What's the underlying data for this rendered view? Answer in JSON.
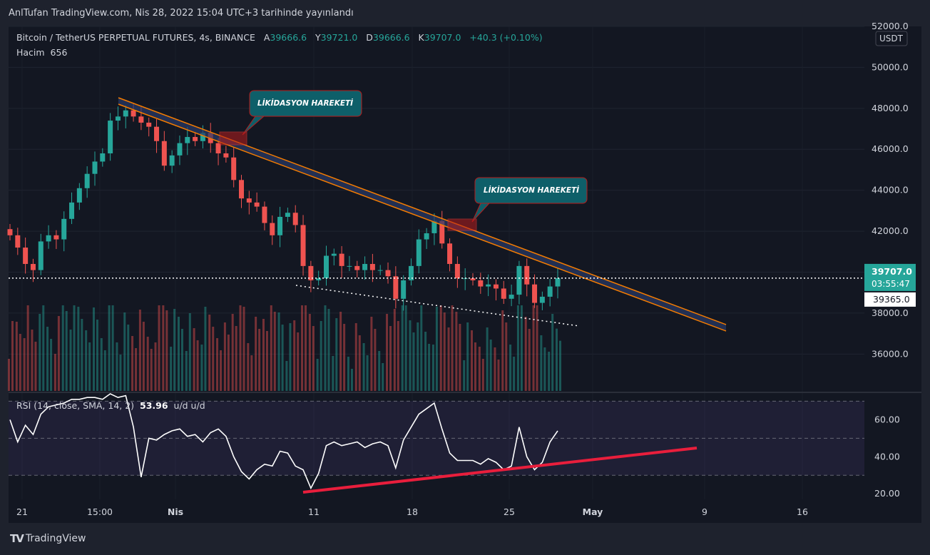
{
  "header": {
    "published": "AnlTufan TradingView.com, Nis 28, 2022 15:04 UTC+3 tarihinde yayınlandı"
  },
  "legend": {
    "symbol": "Bitcoin / TetherUS PERPETUAL FUTURES, 4s, BINANCE",
    "open_label": "A",
    "open": "39666.6",
    "high_label": "Y",
    "high": "39721.0",
    "low_label": "D",
    "low": "39666.6",
    "close_label": "K",
    "close": "39707.0",
    "change": "+40.3 (+0.10%)",
    "volume_label": "Hacim",
    "volume": "656"
  },
  "rsi_legend": {
    "text": "RSI (14, close, SMA, 14, 2)",
    "value": "53.96",
    "extra": "u/d u/d"
  },
  "footer": {
    "brand": "TradingView"
  },
  "colors": {
    "up": "#26a69a",
    "down": "#ef5350",
    "channel": "#f57c00",
    "support": "#e91e3c",
    "callout": "#0e5f69"
  },
  "chart_data": [
    {
      "type": "candlestick",
      "title": "Bitcoin / TetherUS PERPETUAL FUTURES, 4s, BINANCE",
      "ylabel": "USDT",
      "ylim": [
        34200,
        52000
      ],
      "y_ticks": [
        "36000.0",
        "38000.0",
        "40000.0",
        "42000.0",
        "44000.0",
        "46000.0",
        "48000.0",
        "50000.0",
        "52000.0"
      ],
      "x_ticks": [
        "21",
        "15:00",
        "Nis",
        "11",
        "18",
        "25",
        "May",
        "9",
        "16"
      ],
      "price_label": "39707.0",
      "countdown_label": "03:55:47",
      "level_label": "39365.0",
      "current_price": 39707,
      "level_price": 39365,
      "series": [
        {
          "name": "close",
          "values": [
            41800,
            41200,
            40400,
            40100,
            41500,
            41800,
            41600,
            42600,
            43400,
            44100,
            44800,
            45400,
            45800,
            47400,
            47600,
            47900,
            47600,
            47300,
            47100,
            46400,
            45200,
            45700,
            46300,
            46600,
            46400,
            46800,
            46300,
            45800,
            45600,
            44500,
            43600,
            43400,
            43200,
            42400,
            41800,
            42700,
            42900,
            42300,
            40300,
            39600,
            39700,
            40800,
            40900,
            40300,
            40300,
            40100,
            40400,
            40100,
            40100,
            39800,
            38700,
            39600,
            40300,
            41600,
            41900,
            42500,
            41400,
            40400,
            39700,
            39700,
            39600,
            39300,
            39400,
            39200,
            38700,
            38900,
            40300,
            39400,
            38500,
            38800,
            39300,
            39707
          ]
        }
      ],
      "annotations": [
        {
          "text": "LİKİDASYON HAREKETİ"
        },
        {
          "text": "LİKİDASYON HAREKETİ"
        }
      ]
    },
    {
      "type": "line",
      "title": "RSI",
      "ylim": [
        17,
        74
      ],
      "y_ticks": [
        "20.00",
        "40.00",
        "60.00"
      ],
      "bands": [
        30,
        50,
        70
      ],
      "series": [
        {
          "name": "RSI",
          "values": [
            60,
            48,
            57,
            52,
            63,
            67,
            68,
            69,
            71,
            71,
            72,
            72,
            71,
            74,
            72,
            73,
            56,
            29,
            50,
            49,
            52,
            54,
            55,
            51,
            52,
            48,
            53,
            55,
            51,
            40,
            32,
            28,
            33,
            36,
            35,
            43,
            42,
            35,
            33,
            23,
            31,
            46,
            48,
            46,
            47,
            48,
            45,
            47,
            48,
            46,
            34,
            49,
            56,
            63,
            66,
            69,
            55,
            42,
            38,
            38,
            38,
            36,
            39,
            37,
            33,
            35,
            56,
            40,
            33,
            37,
            48,
            53.96
          ]
        },
        {
          "name": "support",
          "values": []
        }
      ]
    }
  ]
}
